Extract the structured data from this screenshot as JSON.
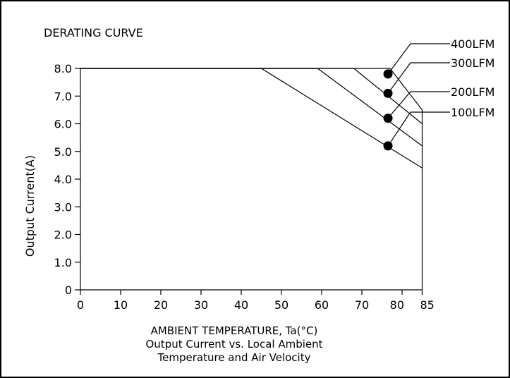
{
  "chart_data": {
    "type": "line",
    "title": "DERATING CURVE",
    "xlabel": "AMBIENT TEMPERATURE, Ta(°C)",
    "ylabel": "Output Current(A)",
    "caption": [
      "Output Current vs. Local Ambient",
      "Temperature and Air Velocity"
    ],
    "xlim": [
      0,
      85
    ],
    "ylim": [
      0,
      8
    ],
    "x_ticks": [
      0,
      10,
      20,
      30,
      40,
      50,
      60,
      70,
      80,
      85
    ],
    "x_tick_labels": [
      "0",
      "10",
      "20",
      "30",
      "40",
      "50",
      "60",
      "70",
      "80",
      "85"
    ],
    "y_ticks": [
      0,
      1,
      2,
      3,
      4,
      5,
      6,
      7,
      8
    ],
    "y_tick_labels": [
      "0",
      "1.0",
      "2.0",
      "3.0",
      "4.0",
      "5.0",
      "6.0",
      "7.0",
      "8.0"
    ],
    "grid": false,
    "series": [
      {
        "name": "100LFM",
        "x": [
          0,
          45,
          85
        ],
        "y": [
          8.0,
          8.0,
          4.4
        ],
        "marker_x": 76.5,
        "marker_y": 5.2
      },
      {
        "name": "200LFM",
        "x": [
          0,
          59,
          85
        ],
        "y": [
          8.0,
          8.0,
          5.2
        ],
        "marker_x": 76.5,
        "marker_y": 6.2
      },
      {
        "name": "300LFM",
        "x": [
          0,
          68,
          85
        ],
        "y": [
          8.0,
          8.0,
          6.0
        ],
        "marker_x": 76.5,
        "marker_y": 7.1
      },
      {
        "name": "400LFM",
        "x": [
          0,
          77,
          85
        ],
        "y": [
          8.0,
          8.0,
          6.5
        ],
        "marker_x": 76.5,
        "marker_y": 7.8
      }
    ]
  }
}
